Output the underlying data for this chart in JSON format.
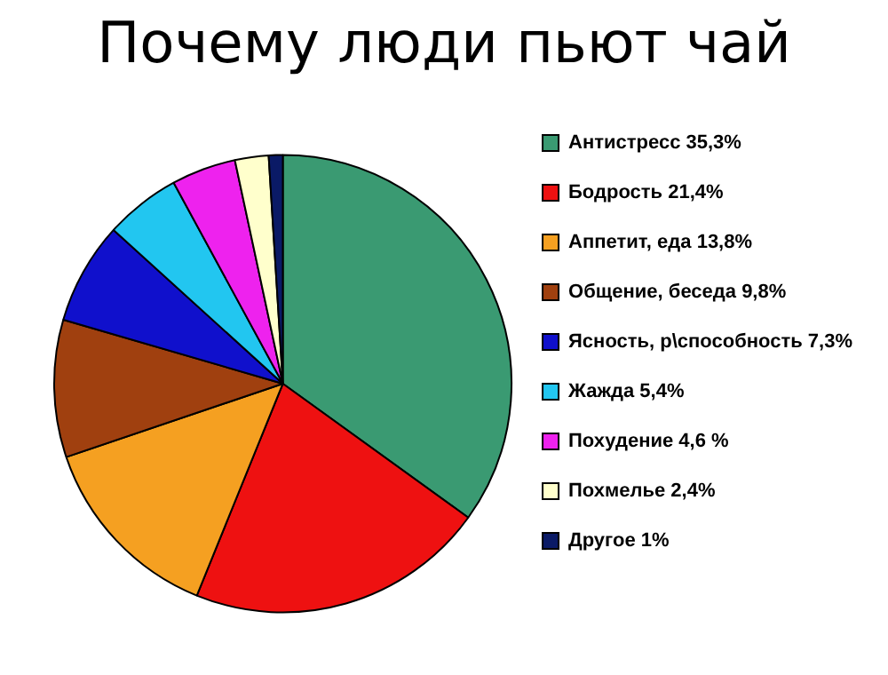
{
  "chart_data": {
    "type": "pie",
    "title": "Почему люди пьют чай",
    "categories": [
      "Антистресс 35,3%",
      "Бодрость 21,4%",
      "Аппетит, еда 13,8%",
      "Общение, беседа 9,8%",
      "Ясность, р\\способность 7,3%",
      "Жажда 5,4%",
      "Похудение 4,6 %",
      "Похмелье 2,4%",
      "Другое 1%"
    ],
    "values": [
      35.3,
      21.4,
      13.8,
      9.8,
      7.3,
      5.4,
      4.6,
      2.4,
      1
    ],
    "colors": [
      "#3a9a72",
      "#ee1111",
      "#f5a021",
      "#a0400f",
      "#1010cc",
      "#22c6f0",
      "#ee22ee",
      "#ffffcc",
      "#0a1a66"
    ],
    "legend": "right"
  }
}
